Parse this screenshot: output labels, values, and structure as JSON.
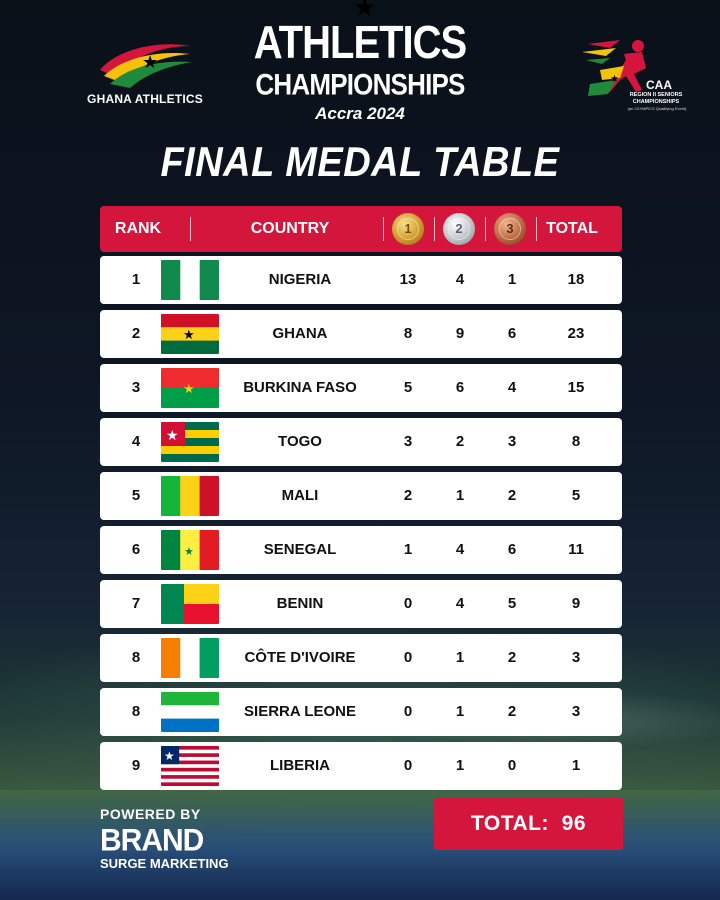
{
  "branding": {
    "ghana_logo_text": "GHANA ATHLETICS",
    "caa_logo": {
      "abbr": "CAA",
      "line1": "REGION II SENIORS",
      "line2": "CHAMPIONSHIPS",
      "line3": "(an OLYMPICS Qualifying Event)"
    }
  },
  "title": {
    "line1": "ATHLETICS",
    "line2": "CHAMPIONSHIPS",
    "line3": "Accra 2024"
  },
  "subtitle": "FINAL MEDAL TABLE",
  "header": {
    "rank": "RANK",
    "country": "COUNTRY",
    "gold_icon": "gold-medal-icon",
    "gold_num": "1",
    "silver_icon": "silver-medal-icon",
    "silver_num": "2",
    "bronze_icon": "bronze-medal-icon",
    "bronze_num": "3",
    "total": "TOTAL"
  },
  "rows": [
    {
      "rank": "1",
      "country": "NIGERIA",
      "flag": "nigeria-flag-icon",
      "gold": "13",
      "silver": "4",
      "bronze": "1",
      "total": "18"
    },
    {
      "rank": "2",
      "country": "GHANA",
      "flag": "ghana-flag-icon",
      "gold": "8",
      "silver": "9",
      "bronze": "6",
      "total": "23"
    },
    {
      "rank": "3",
      "country": "BURKINA FASO",
      "flag": "burkina-faso-flag-icon",
      "gold": "5",
      "silver": "6",
      "bronze": "4",
      "total": "15"
    },
    {
      "rank": "4",
      "country": "TOGO",
      "flag": "togo-flag-icon",
      "gold": "3",
      "silver": "2",
      "bronze": "3",
      "total": "8"
    },
    {
      "rank": "5",
      "country": "MALI",
      "flag": "mali-flag-icon",
      "gold": "2",
      "silver": "1",
      "bronze": "2",
      "total": "5"
    },
    {
      "rank": "6",
      "country": "SENEGAL",
      "flag": "senegal-flag-icon",
      "gold": "1",
      "silver": "4",
      "bronze": "6",
      "total": "11"
    },
    {
      "rank": "7",
      "country": "BENIN",
      "flag": "benin-flag-icon",
      "gold": "0",
      "silver": "4",
      "bronze": "5",
      "total": "9"
    },
    {
      "rank": "8",
      "country": "CÔTE D'IVOIRE",
      "flag": "cote-divoire-flag-icon",
      "gold": "0",
      "silver": "1",
      "bronze": "2",
      "total": "3"
    },
    {
      "rank": "8",
      "country": "SIERRA LEONE",
      "flag": "sierra-leone-flag-icon",
      "gold": "0",
      "silver": "1",
      "bronze": "2",
      "total": "3"
    },
    {
      "rank": "9",
      "country": "LIBERIA",
      "flag": "liberia-flag-icon",
      "gold": "0",
      "silver": "1",
      "bronze": "0",
      "total": "1"
    }
  ],
  "footer": {
    "powered_by": "POWERED BY",
    "brand": "BRAND",
    "brand_sub": "SURGE MARKETING",
    "total_label": "TOTAL:",
    "total_value": "96"
  },
  "colors": {
    "accent_red": "#d5163c",
    "row_bg": "#ffffff",
    "page_bg": "#0c1320"
  }
}
